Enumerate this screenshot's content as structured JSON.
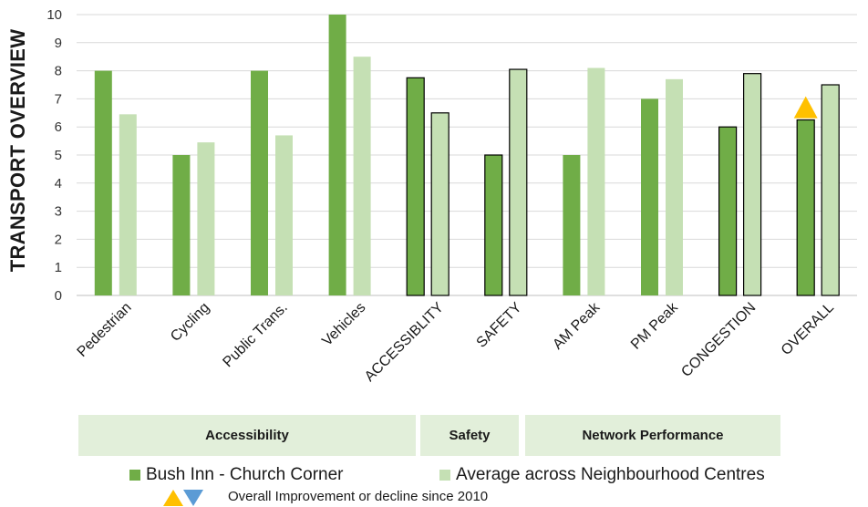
{
  "chart_data": {
    "type": "bar",
    "ylabel": "TRANSPORT OVERVIEW",
    "ylim": [
      0,
      10
    ],
    "yticks": [
      "0",
      "1",
      "2",
      "3",
      "4",
      "5",
      "6",
      "7",
      "8",
      "9",
      "10"
    ],
    "categories": [
      "Pedestrian",
      "Cycling",
      "Public Trans.",
      "Vehicles",
      "ACCESSIBLITY",
      "SAFETY",
      "AM Peak",
      "PM Peak",
      "CONGESTION",
      "OVERALL"
    ],
    "series": [
      {
        "name": "Bush Inn - Church Corner",
        "color": "#70ad47",
        "values": [
          8,
          5,
          8,
          10,
          7.75,
          5,
          5,
          7,
          6,
          6.25
        ]
      },
      {
        "name": "Average across Neighbourhood Centres",
        "color": "#c5e0b4",
        "values": [
          6.45,
          5.45,
          5.7,
          8.5,
          6.5,
          8.05,
          8.1,
          7.7,
          7.9,
          7.5
        ]
      }
    ],
    "outlined_categories": [
      "ACCESSIBLITY",
      "SAFETY",
      "CONGESTION",
      "OVERALL"
    ],
    "groups": [
      {
        "label": "Accessibility"
      },
      {
        "label": "Safety"
      },
      {
        "label": "Network Performance"
      }
    ],
    "marker": {
      "category": "OVERALL",
      "value": 6.7,
      "direction": "improvement",
      "color": "#ffc000"
    },
    "legend_note": "Overall Improvement or decline since 2010",
    "note_icons": {
      "up_color": "#ffc000",
      "down_color": "#5b9bd5"
    },
    "grid": true
  }
}
